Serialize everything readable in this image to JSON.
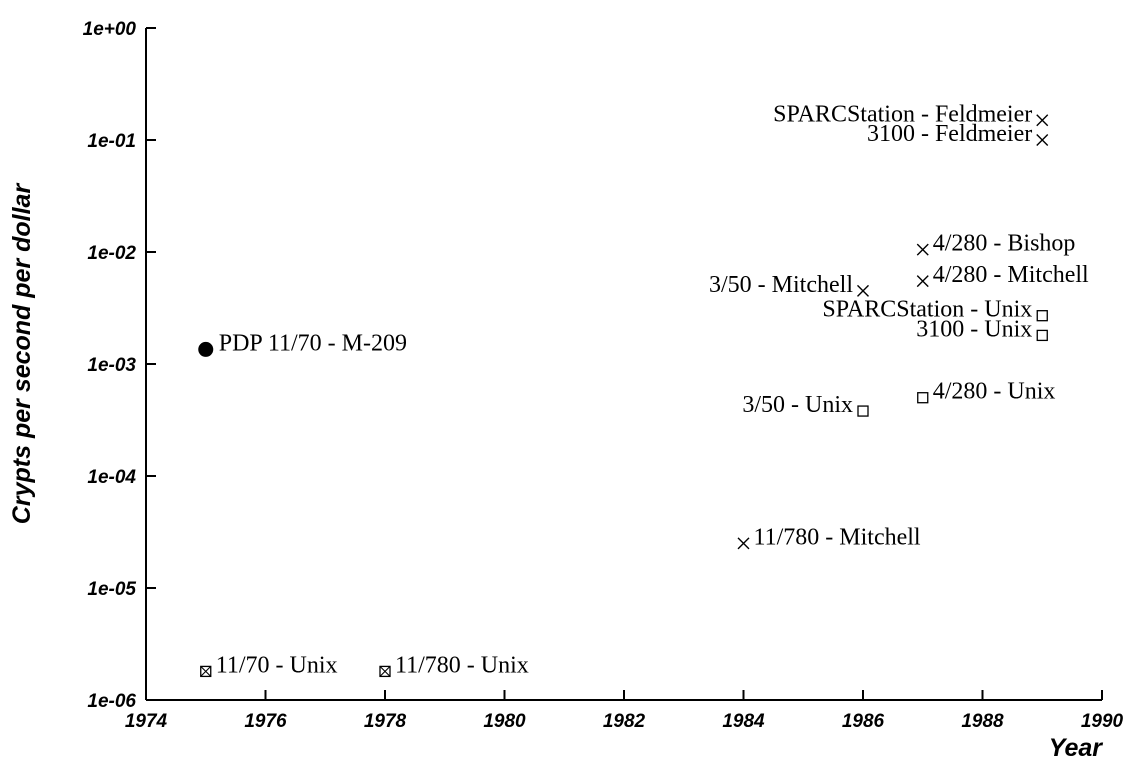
{
  "chart_data": {
    "type": "scatter",
    "title": "",
    "xlabel": "Year",
    "ylabel": "Crypts per second per dollar",
    "xlim": [
      1974,
      1990
    ],
    "ylim": [
      1e-06,
      1
    ],
    "yscale": "log",
    "grid": false,
    "x_ticks": [
      "1974",
      "1976",
      "1978",
      "1980",
      "1982",
      "1984",
      "1986",
      "1988",
      "1990"
    ],
    "y_ticks": [
      "1e-06",
      "1e-05",
      "1e-04",
      "1e-03",
      "1e-02",
      "1e-01",
      "1e+00"
    ],
    "points": [
      {
        "label": "PDP 11/70 - M-209",
        "x": 1975,
        "y": 0.00135,
        "marker": "dot",
        "label_side": "right"
      },
      {
        "label": "11/70 - Unix",
        "x": 1975,
        "y": 1.8e-06,
        "marker": "boxcross",
        "label_side": "right"
      },
      {
        "label": "11/780 - Unix",
        "x": 1978,
        "y": 1.8e-06,
        "marker": "boxcross",
        "label_side": "right"
      },
      {
        "label": "11/780 - Mitchell",
        "x": 1984,
        "y": 2.5e-05,
        "marker": "cross",
        "label_side": "right"
      },
      {
        "label": "3/50 - Mitchell",
        "x": 1986,
        "y": 0.0045,
        "marker": "cross",
        "label_side": "left"
      },
      {
        "label": "3/50 - Unix",
        "x": 1986,
        "y": 0.00038,
        "marker": "square",
        "label_side": "left"
      },
      {
        "label": "4/280 - Bishop",
        "x": 1987,
        "y": 0.0105,
        "marker": "cross",
        "label_side": "right"
      },
      {
        "label": "4/280 - Mitchell",
        "x": 1987,
        "y": 0.0055,
        "marker": "cross",
        "label_side": "right"
      },
      {
        "label": "4/280 - Unix",
        "x": 1987,
        "y": 0.0005,
        "marker": "square",
        "label_side": "right"
      },
      {
        "label": "SPARCStation - Feldmeier",
        "x": 1989,
        "y": 0.15,
        "marker": "cross",
        "label_side": "left"
      },
      {
        "label": "3100 - Feldmeier",
        "x": 1989,
        "y": 0.1,
        "marker": "cross",
        "label_side": "left"
      },
      {
        "label": "SPARCStation - Unix",
        "x": 1989,
        "y": 0.0027,
        "marker": "square",
        "label_side": "left"
      },
      {
        "label": "3100 - Unix",
        "x": 1989,
        "y": 0.0018,
        "marker": "square",
        "label_side": "left"
      }
    ]
  }
}
